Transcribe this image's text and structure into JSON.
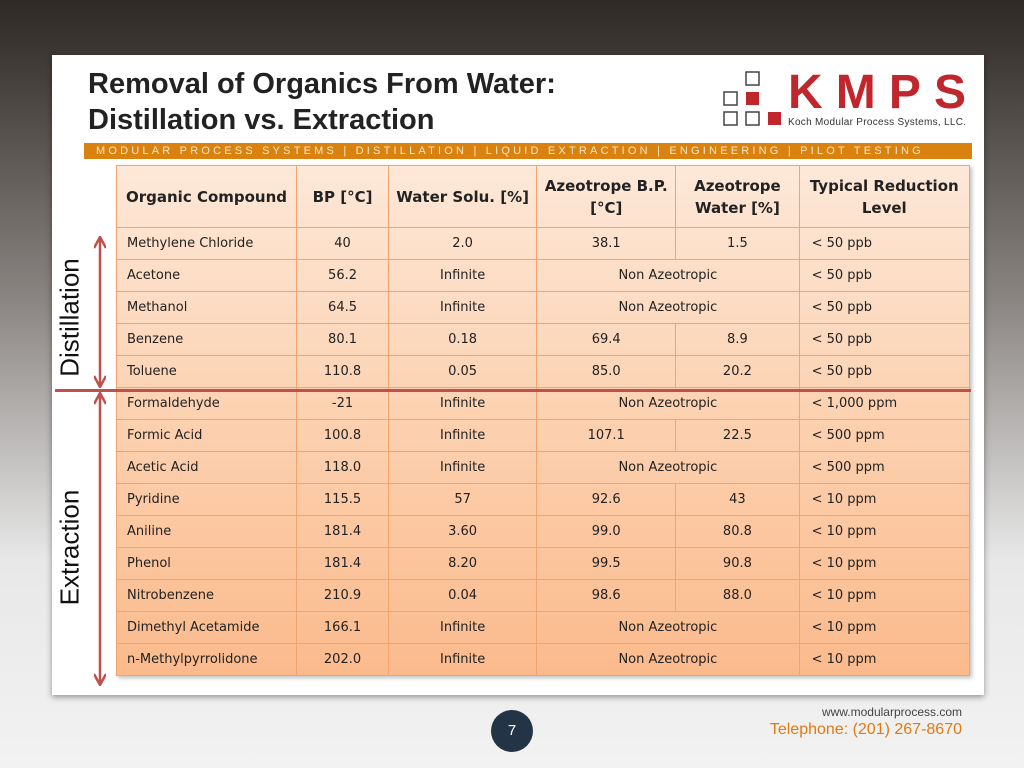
{
  "title_line1": "Removal of Organics From Water:",
  "title_line2": "Distillation vs. Extraction",
  "logo": {
    "text": "KMPS",
    "subtitle": "Koch Modular Process Systems, LLC."
  },
  "band": "MODULAR PROCESS SYSTEMS | DISTILLATION | LIQUID EXTRACTION | ENGINEERING | PILOT TESTING",
  "side_labels": {
    "distillation": "Distillation",
    "extraction": "Extraction"
  },
  "headers": [
    "Organic Compound",
    "BP [°C]",
    "Water Solu. [%]",
    "Azeotrope B.P. [°C]",
    "Azeotrope Water [%]",
    "Typical Reduction Level"
  ],
  "rows": [
    [
      "Methylene Chloride",
      "40",
      "2.0",
      "38.1",
      "1.5",
      "< 50 ppb"
    ],
    [
      "Acetone",
      "56.2",
      "Infinite",
      "Non Azeotropic",
      "",
      "< 50 ppb"
    ],
    [
      "Methanol",
      "64.5",
      "Infinite",
      "Non Azeotropic",
      "",
      "< 50 ppb"
    ],
    [
      "Benzene",
      "80.1",
      "0.18",
      "69.4",
      "8.9",
      "< 50 ppb"
    ],
    [
      "Toluene",
      "110.8",
      "0.05",
      "85.0",
      "20.2",
      "< 50 ppb"
    ],
    [
      "Formaldehyde",
      "-21",
      "Infinite",
      "Non Azeotropic",
      "",
      "< 1,000 ppm"
    ],
    [
      "Formic Acid",
      "100.8",
      "Infinite",
      "107.1",
      "22.5",
      "< 500 ppm"
    ],
    [
      "Acetic Acid",
      "118.0",
      "Infinite",
      "Non Azeotropic",
      "",
      "< 500 ppm"
    ],
    [
      "Pyridine",
      "115.5",
      "57",
      "92.6",
      "43",
      "< 10 ppm"
    ],
    [
      "Aniline",
      "181.4",
      "3.60",
      "99.0",
      "80.8",
      "< 10 ppm"
    ],
    [
      "Phenol",
      "181.4",
      "8.20",
      "99.5",
      "90.8",
      "< 10 ppm"
    ],
    [
      "Nitrobenzene",
      "210.9",
      "0.04",
      "98.6",
      "88.0",
      "< 10 ppm"
    ],
    [
      "Dimethyl Acetamide",
      "166.1",
      "Infinite",
      "Non Azeotropic",
      "",
      "< 10 ppm"
    ],
    [
      "n-Methylpyrrolidone",
      "202.0",
      "Infinite",
      "Non Azeotropic",
      "",
      "< 10 ppm"
    ]
  ],
  "footer": {
    "website": "www.modularprocess.com",
    "telephone": "Telephone: (201) 267-8670",
    "page": "7"
  },
  "colors": {
    "brand_red": "#c0272d",
    "band": "#d9820f",
    "divider": "#c0504d"
  }
}
